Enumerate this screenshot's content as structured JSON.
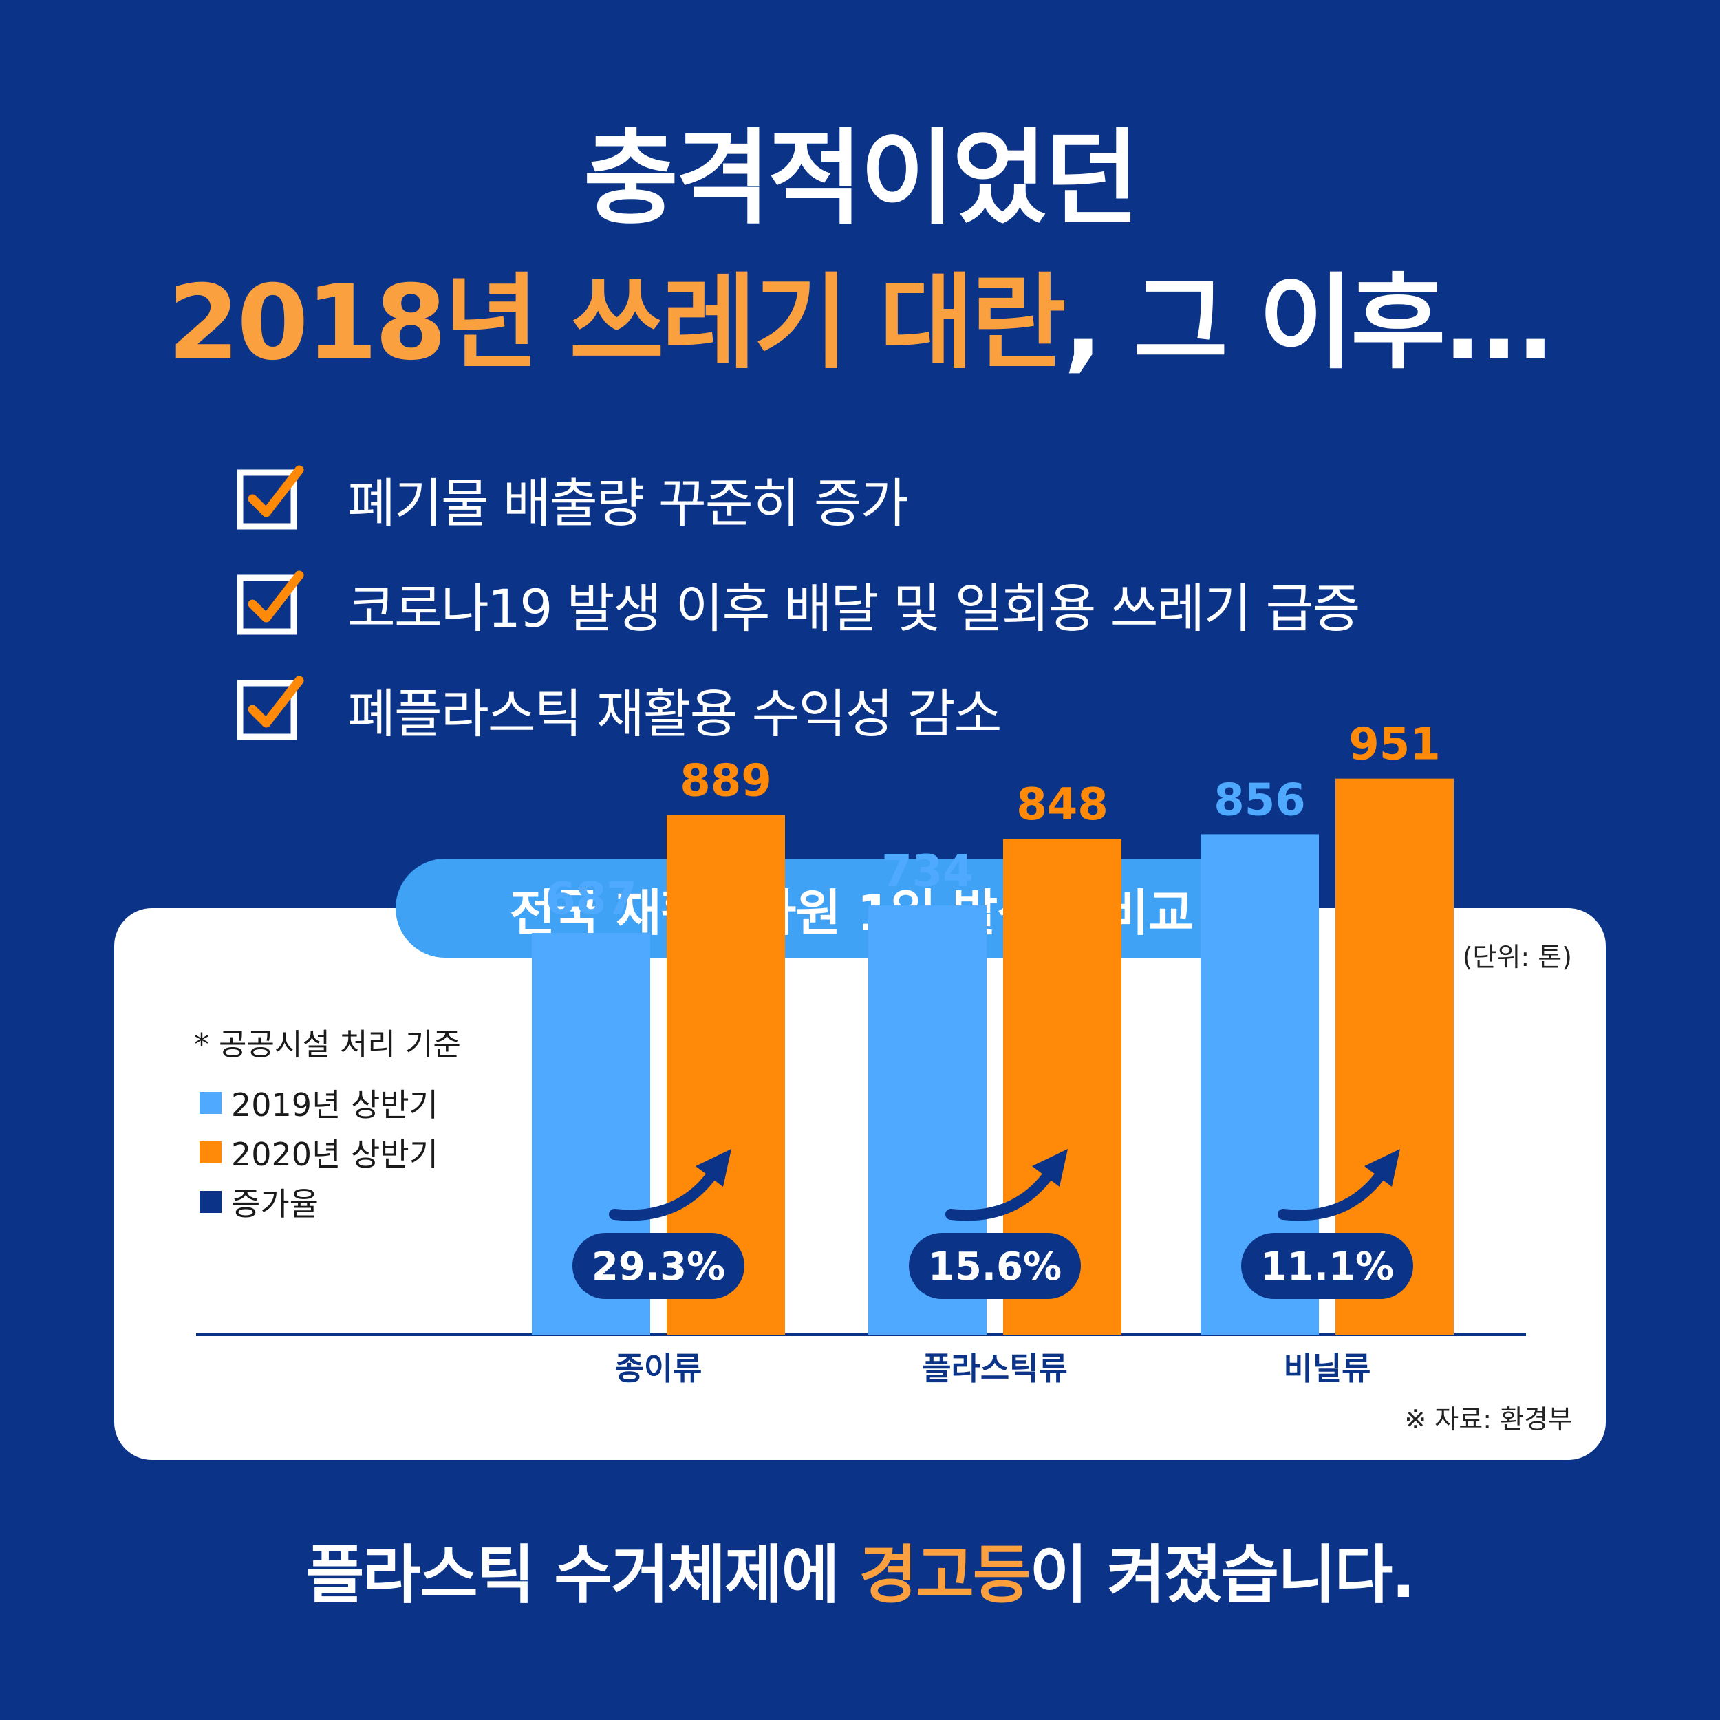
{
  "headline": {
    "line1": "충격적이었던",
    "line2_highlight": "2018년 쓰레기 대란",
    "line2_rest": ", 그 이후..."
  },
  "checklist": [
    {
      "label": "폐기물 배출량 꾸준히 증가"
    },
    {
      "label": "코로나19 발생 이후 배달 및 일회용 쓰레기 급증"
    },
    {
      "label": "폐플라스틱 재활용 수익성 감소"
    }
  ],
  "card": {
    "title": "전국 재활용자원 1일 발생량 비교",
    "unit": "(단위: 톤)",
    "note": "* 공공시설 처리 기준",
    "source": "※ 자료: 환경부"
  },
  "legend": [
    {
      "label": "2019년 상반기",
      "color": "#4ea9ff"
    },
    {
      "label": "2020년 상반기",
      "color": "#ff8a0a"
    },
    {
      "label": "증가율",
      "color": "#0b3488"
    }
  ],
  "chart_data": {
    "type": "bar",
    "categories": [
      "종이류",
      "플라스틱류",
      "비닐류"
    ],
    "series": [
      {
        "name": "2019년 상반기",
        "values": [
          687,
          734,
          856
        ],
        "color": "#4ea9ff"
      },
      {
        "name": "2020년 상반기",
        "values": [
          889,
          848,
          951
        ],
        "color": "#ff8a0a"
      }
    ],
    "growth_rates": [
      "29.3%",
      "15.6%",
      "11.1%"
    ],
    "title": "전국 재활용자원 1일 발생량 비교",
    "ylabel": "(단위: 톤)",
    "ylim": [
      0,
      1000
    ],
    "grid": false,
    "legend": "left"
  },
  "footer": {
    "pre": "플라스틱 수거체제에 ",
    "highlight": "경고등",
    "post": "이 켜졌습니다."
  },
  "colors": {
    "background": "#0b3488",
    "accent_orange": "#fba03f",
    "series_blue": "#4ea9ff",
    "series_orange": "#ff8a0a",
    "pill_blue": "#3fa2f5",
    "growth_pill": "#0b3488"
  }
}
